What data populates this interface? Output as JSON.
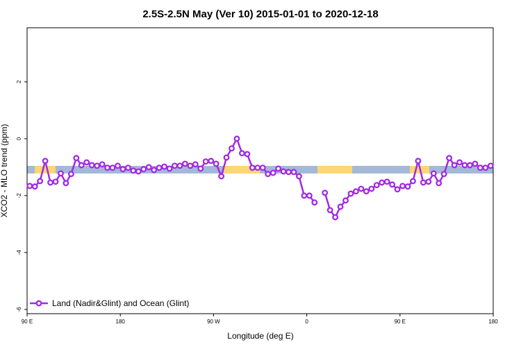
{
  "chart_data": {
    "type": "line",
    "title": "2.5S-2.5N May (Ver 10)   2015-01-01 to 2020-12-18",
    "xlabel": "Longitude (deg E)",
    "ylabel": "XCO2 - MLO trend (ppm)",
    "xlim": [
      90,
      540
    ],
    "ylim": [
      -6.15,
      3.9
    ],
    "xticks": [
      {
        "value": 90,
        "label": "90 E"
      },
      180,
      {
        "value": 270,
        "label": "90 W"
      },
      {
        "value": 360,
        "label": "0"
      },
      {
        "value": 450,
        "label": "90 E"
      },
      {
        "value": 540,
        "label": "180"
      }
    ],
    "yticks": [
      -6,
      -4,
      -2,
      0,
      2
    ],
    "legend": "bottom-left",
    "x": [
      92.5,
      97.5,
      102.5,
      107.5,
      112.5,
      117.5,
      122.5,
      127.5,
      132.5,
      137.5,
      142.5,
      147.5,
      152.5,
      157.5,
      162.5,
      167.5,
      172.5,
      177.5,
      182.5,
      187.5,
      192.5,
      197.5,
      202.5,
      207.5,
      212.5,
      217.5,
      222.5,
      227.5,
      232.5,
      237.5,
      242.5,
      247.5,
      252.5,
      257.5,
      262.5,
      267.5,
      272.5,
      277.5,
      282.5,
      287.5,
      292.5,
      297.5,
      302.5,
      307.5,
      312.5,
      317.5,
      322.5,
      327.5,
      332.5,
      337.5,
      342.5,
      347.5,
      352.5,
      357.5,
      362.5,
      367.5,
      372.5,
      377.5,
      382.5,
      387.5,
      392.5,
      397.5,
      402.5,
      407.5,
      412.5,
      417.5,
      422.5,
      427.5,
      432.5,
      437.5,
      442.5,
      447.5,
      452.5,
      457.5,
      462.5,
      467.5,
      472.5,
      477.5,
      482.5,
      487.5,
      492.5,
      497.5,
      502.5,
      507.5,
      512.5,
      517.5,
      522.5,
      527.5,
      532.5,
      537.5
    ],
    "series": [
      {
        "name": "Land (Nadir&Glint) and Ocean (Glint)",
        "color": "#a02be4",
        "values": [
          -1.66,
          -1.68,
          -1.49,
          -0.78,
          -1.54,
          -1.51,
          -1.22,
          -1.56,
          -1.24,
          -0.68,
          -0.93,
          -0.83,
          -0.93,
          -0.95,
          -0.9,
          -1.02,
          -1.02,
          -0.95,
          -1.07,
          -1.02,
          -1.12,
          -1.15,
          -1.07,
          -1.0,
          -1.1,
          -1.02,
          -0.98,
          -1.05,
          -0.95,
          -0.95,
          -0.88,
          -0.95,
          -0.9,
          -1.05,
          -0.8,
          -0.78,
          -0.88,
          -1.32,
          -0.66,
          -0.34,
          0.0,
          -0.51,
          -0.54,
          -1.02,
          -1.02,
          -1.02,
          -1.24,
          -1.2,
          -1.05,
          -1.15,
          -1.17,
          -1.17,
          -1.32,
          -2.0,
          -2.0,
          -2.24,
          null,
          -1.9,
          -2.51,
          -2.76,
          -2.39,
          -2.17,
          -1.93,
          -1.85,
          -1.76,
          -1.85,
          -1.76,
          -1.63,
          -1.54,
          -1.51,
          -1.61,
          -1.78,
          -1.66,
          -1.68,
          -1.49,
          -0.78,
          -1.54,
          -1.51,
          -1.22,
          -1.56,
          -1.24,
          -0.68,
          -0.93,
          -0.83,
          -0.93,
          -0.93,
          -0.88,
          -1.02,
          -1.02,
          -0.95
        ]
      }
    ]
  }
}
